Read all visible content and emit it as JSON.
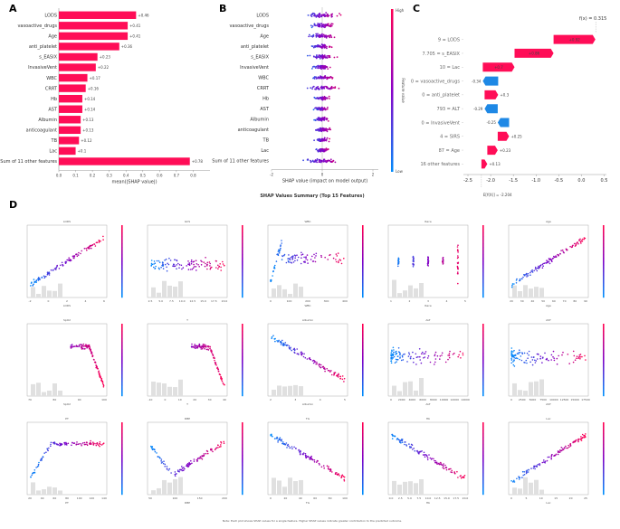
{
  "panels": {
    "a": "A",
    "b": "B",
    "c": "C",
    "d": "D"
  },
  "chart_data": [
    {
      "type": "bar",
      "panel": "A",
      "orientation": "horizontal",
      "title": "",
      "xlabel": "mean(|SHAP value|)",
      "xlim": [
        0,
        0.9
      ],
      "xticks": [
        "0.0",
        "0.1",
        "0.2",
        "0.3",
        "0.4",
        "0.5",
        "0.6",
        "0.7",
        "0.8"
      ],
      "categories": [
        "LODS",
        "vasoactive_drugs",
        "Age",
        "anti_platelet",
        "s_EASIX",
        "InvasiveVent",
        "WBC",
        "CRRT",
        "Hb",
        "AST",
        "Albumin",
        "anticoagulant",
        "TB",
        "Lac",
        "Sum of 11 other features"
      ],
      "values": [
        0.46,
        0.41,
        0.41,
        0.36,
        0.23,
        0.22,
        0.17,
        0.16,
        0.14,
        0.14,
        0.13,
        0.13,
        0.12,
        0.1,
        0.78
      ],
      "value_labels": [
        "+0.46",
        "+0.41",
        "+0.41",
        "+0.36",
        "+0.23",
        "+0.22",
        "+0.17",
        "+0.16",
        "+0.14",
        "+0.14",
        "+0.13",
        "+0.13",
        "+0.12",
        "+0.1",
        "+0.78"
      ],
      "bar_color": "#ff0d57"
    },
    {
      "type": "scatter",
      "panel": "B",
      "subtype": "beeswarm",
      "title": "SHAP Values Summary (Top 15 Features)",
      "xlabel": "SHAP value (impact on model output)",
      "xticks": [
        "-2",
        "0",
        "2"
      ],
      "features": [
        "LODS",
        "vasoactive_drugs",
        "Age",
        "anti_platelet",
        "s_EASIX",
        "InvasiveVent",
        "WBC",
        "CRRT",
        "Hb",
        "AST",
        "Albumin",
        "anticoagulant",
        "TB",
        "Lac",
        "Sum of 11 other features"
      ],
      "colorbar": {
        "label": "Feature value",
        "high": "High",
        "low": "Low",
        "high_color": "#ff0052",
        "low_color": "#008bfb"
      }
    },
    {
      "type": "bar",
      "panel": "C",
      "subtype": "waterfall",
      "fx": "f(x) = 0.315",
      "efx": "E[f(X)] = -2.204",
      "xticks": [
        "-2.5",
        "-2.0",
        "-1.5",
        "-1.0",
        "-0.5",
        "0.0",
        "0.5"
      ],
      "xlim": [
        -2.6,
        0.55
      ],
      "rows": [
        {
          "label": "9 = LODS",
          "value": 0.92,
          "text": "+0.92"
        },
        {
          "label": "7.705 = s_EASIX",
          "value": 0.86,
          "text": "+0.86"
        },
        {
          "label": "10 = Lac",
          "value": 0.7,
          "text": "+0.7"
        },
        {
          "label": "0 = vasoactive_drugs",
          "value": -0.34,
          "text": "-0.34"
        },
        {
          "label": "0 = anti_platelet",
          "value": 0.3,
          "text": "+0.3"
        },
        {
          "label": "793 = ALT",
          "value": -0.29,
          "text": "-0.29"
        },
        {
          "label": "0 = InvasiveVent",
          "value": -0.25,
          "text": "-0.25"
        },
        {
          "label": "4 = SIRS",
          "value": 0.25,
          "text": "+0.25"
        },
        {
          "label": "87 = Age",
          "value": 0.23,
          "text": "+0.23"
        },
        {
          "label": "16 other features",
          "value": 0.13,
          "text": "+0.13"
        }
      ],
      "pos_color": "#ff0d57",
      "neg_color": "#1e88e5"
    },
    {
      "type": "scatter",
      "panel": "D",
      "subtype": "dependence-grid",
      "plots": [
        {
          "title": "LODS",
          "xlabel": "LODS",
          "shape": "rise",
          "xticks": [
            "-2",
            "0",
            "2",
            "4",
            "6"
          ]
        },
        {
          "title": "GCS",
          "xlabel": "",
          "shape": "flat-band",
          "xticks": [
            "2.5",
            "5.0",
            "7.5",
            "10.0",
            "12.5",
            "15.0",
            "17.5",
            "20.0"
          ]
        },
        {
          "title": "WBC",
          "xlabel": "WBC",
          "shape": "wall",
          "xticks": [
            "0",
            "100",
            "200",
            "300",
            "400"
          ]
        },
        {
          "title": "Race",
          "xlabel": "Race",
          "shape": "columns",
          "xticks": [
            "1",
            "2",
            "3",
            "4",
            "5"
          ]
        },
        {
          "title": "Age",
          "xlabel": "Age",
          "shape": "rise",
          "xticks": [
            "20",
            "30",
            "40",
            "50",
            "60",
            "70",
            "80",
            "90"
          ]
        },
        {
          "title": "SpO2",
          "xlabel": "SpO2",
          "shape": "drop",
          "xticks": [
            "70",
            "80",
            "90",
            "100"
          ]
        },
        {
          "title": "T",
          "xlabel": "T",
          "shape": "drop",
          "xticks": [
            "-10",
            "0",
            "10",
            "20",
            "30",
            "40"
          ]
        },
        {
          "title": "Albumin",
          "xlabel": "Albumin",
          "shape": "fall",
          "xticks": [
            "2",
            "3",
            "4",
            "5"
          ]
        },
        {
          "title": "ALT",
          "xlabel": "ALT",
          "shape": "scatter",
          "xticks": [
            "0",
            "2000",
            "4000",
            "6000",
            "8000",
            "10000",
            "12000",
            "14000"
          ]
        },
        {
          "title": "AST",
          "xlabel": "AST",
          "shape": "scatter",
          "xticks": [
            "0",
            "2500",
            "5000",
            "7500",
            "10000",
            "12500",
            "15000",
            "17500"
          ]
        },
        {
          "title": "PT",
          "xlabel": "PT",
          "shape": "plateau",
          "xticks": [
            "20",
            "40",
            "60",
            "80",
            "100",
            "120",
            "140"
          ]
        },
        {
          "title": "DBP",
          "xlabel": "DBP",
          "shape": "vshape",
          "xticks": [
            "50",
            "100",
            "150",
            "200"
          ]
        },
        {
          "title": "TG",
          "xlabel": "TG",
          "shape": "fall",
          "xticks": [
            "0",
            "20",
            "40",
            "60",
            "80",
            "100"
          ]
        },
        {
          "title": "Hb",
          "xlabel": "Hb",
          "shape": "fall",
          "xticks": [
            "0.0",
            "2.5",
            "5.0",
            "7.5",
            "10.0",
            "12.5",
            "15.0",
            "17.5",
            "20.0"
          ]
        },
        {
          "title": "Lac",
          "xlabel": "Lac",
          "shape": "rise",
          "xticks": [
            "0",
            "5",
            "10",
            "15",
            "20",
            "25"
          ]
        }
      ]
    }
  ],
  "footnote": "Note: Each plot shows SHAP values for a single feature. Higher SHAP values indicate greater contribution to the predicted outcome."
}
